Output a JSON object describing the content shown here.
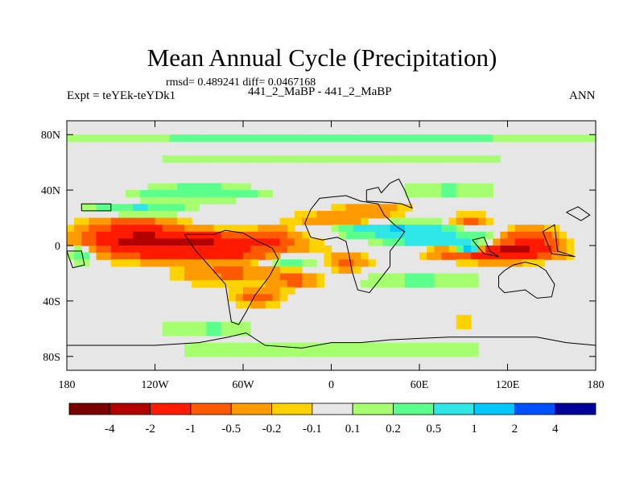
{
  "chart_data": {
    "type": "heatmap",
    "title": "Mean Annual Cycle (Precipitation)",
    "stats_text": "rmsd= 0.489241 diff= 0.0467168",
    "left_label": "Expt = teYEk-teYDk1",
    "subtitle": "441_2_MaBP - 441_2_MaBP",
    "season": "ANN",
    "xlim": [
      -180,
      180
    ],
    "ylim": [
      -90,
      90
    ],
    "x_ticks": [
      {
        "value": -180,
        "label": "180"
      },
      {
        "value": -120,
        "label": "120W"
      },
      {
        "value": -60,
        "label": "60W"
      },
      {
        "value": 0,
        "label": "0"
      },
      {
        "value": 60,
        "label": "60E"
      },
      {
        "value": 120,
        "label": "120E"
      },
      {
        "value": 180,
        "label": "180"
      }
    ],
    "y_ticks": [
      {
        "value": 80,
        "label": "80N"
      },
      {
        "value": 40,
        "label": "40N"
      },
      {
        "value": 0,
        "label": "0"
      },
      {
        "value": -40,
        "label": "40S"
      },
      {
        "value": -80,
        "label": "80S"
      }
    ],
    "contour_levels": [
      -4,
      -2,
      -1,
      -0.5,
      -0.2,
      -0.1,
      0.1,
      0.2,
      0.5,
      1,
      2,
      4
    ],
    "colorbar": {
      "colors": [
        "#7a0000",
        "#b30000",
        "#ff1a00",
        "#ff5a00",
        "#ff9a00",
        "#ffd200",
        "#e6e6e6",
        "#a6ff6e",
        "#5aff8c",
        "#2ee6e6",
        "#00c8ff",
        "#0050ff",
        "#00009a"
      ],
      "labels": [
        "-4",
        "-2",
        "-1",
        "-0.5",
        "-0.2",
        "-0.1",
        "0.1",
        "0.2",
        "0.5",
        "1",
        "2",
        "4"
      ]
    },
    "anomaly_regions": [
      {
        "lon": -135,
        "lat": 12,
        "rlon": 28,
        "rlat": 7,
        "value": -1.2
      },
      {
        "lon": -110,
        "lat": 3,
        "rlon": 60,
        "rlat": 6,
        "value": -2.5
      },
      {
        "lon": -95,
        "lat": -6,
        "rlon": 55,
        "rlat": 5,
        "value": -1.5
      },
      {
        "lon": -70,
        "lat": -20,
        "rlon": 32,
        "rlat": 7,
        "value": -0.6
      },
      {
        "lon": -50,
        "lat": -37,
        "rlon": 15,
        "rlat": 5,
        "value": -0.7
      },
      {
        "lon": -25,
        "lat": -25,
        "rlon": 15,
        "rlat": 5,
        "value": -0.7
      },
      {
        "lon": -40,
        "lat": 5,
        "rlon": 12,
        "rlat": 7,
        "value": -0.6
      },
      {
        "lon": 12,
        "lat": 17,
        "rlon": 35,
        "rlat": 7,
        "value": -0.5
      },
      {
        "lon": 12,
        "lat": -12,
        "rlon": 12,
        "rlat": 6,
        "value": -0.6
      },
      {
        "lon": 110,
        "lat": -5,
        "rlon": 30,
        "rlat": 5,
        "value": -2.2
      },
      {
        "lon": 135,
        "lat": 2,
        "rlon": 18,
        "rlat": 8,
        "value": -1.5
      },
      {
        "lon": 95,
        "lat": 18,
        "rlon": 12,
        "rlat": 4,
        "value": -0.6
      },
      {
        "lon": -45,
        "lat": -60,
        "rlon": 22,
        "rlat": 4,
        "value": -0.3
      },
      {
        "lon": 90,
        "lat": -55,
        "rlon": 6,
        "rlat": 3,
        "value": -0.3
      },
      {
        "lon": 30,
        "lat": 27,
        "rlon": 25,
        "rlat": 4,
        "value": -0.25
      },
      {
        "lon": 40,
        "lat": 12,
        "rlon": 38,
        "rlat": 5,
        "value": 1.2
      },
      {
        "lon": 75,
        "lat": 4,
        "rlon": 35,
        "rlat": 4,
        "value": 0.9
      },
      {
        "lon": 95,
        "lat": -3,
        "rlon": 10,
        "rlat": 3,
        "value": 2.5
      },
      {
        "lon": -170,
        "lat": -3,
        "rlon": 12,
        "rlat": 8,
        "value": 0.7
      },
      {
        "lon": -130,
        "lat": 26,
        "rlon": 30,
        "rlat": 4,
        "value": 0.6
      },
      {
        "lon": -30,
        "lat": -10,
        "rlon": 20,
        "rlat": 4,
        "value": 0.5
      },
      {
        "lon": 60,
        "lat": -25,
        "rlon": 45,
        "rlat": 6,
        "value": 0.25
      },
      {
        "lon": -60,
        "lat": -60,
        "rlon": 55,
        "rlat": 6,
        "value": 0.3
      },
      {
        "lon": 0,
        "lat": -75,
        "rlon": 120,
        "rlat": 5,
        "value": 0.25
      },
      {
        "lon": 0,
        "lat": 77,
        "rlon": 180,
        "rlat": 4,
        "value": 0.3
      },
      {
        "lon": 0,
        "lat": 63,
        "rlon": 180,
        "rlat": 5,
        "value": 0.15
      },
      {
        "lon": -90,
        "lat": 38,
        "rlon": 40,
        "rlat": 5,
        "value": 0.5
      },
      {
        "lon": 80,
        "lat": 40,
        "rlon": 35,
        "rlat": 4,
        "value": 0.3
      }
    ]
  }
}
